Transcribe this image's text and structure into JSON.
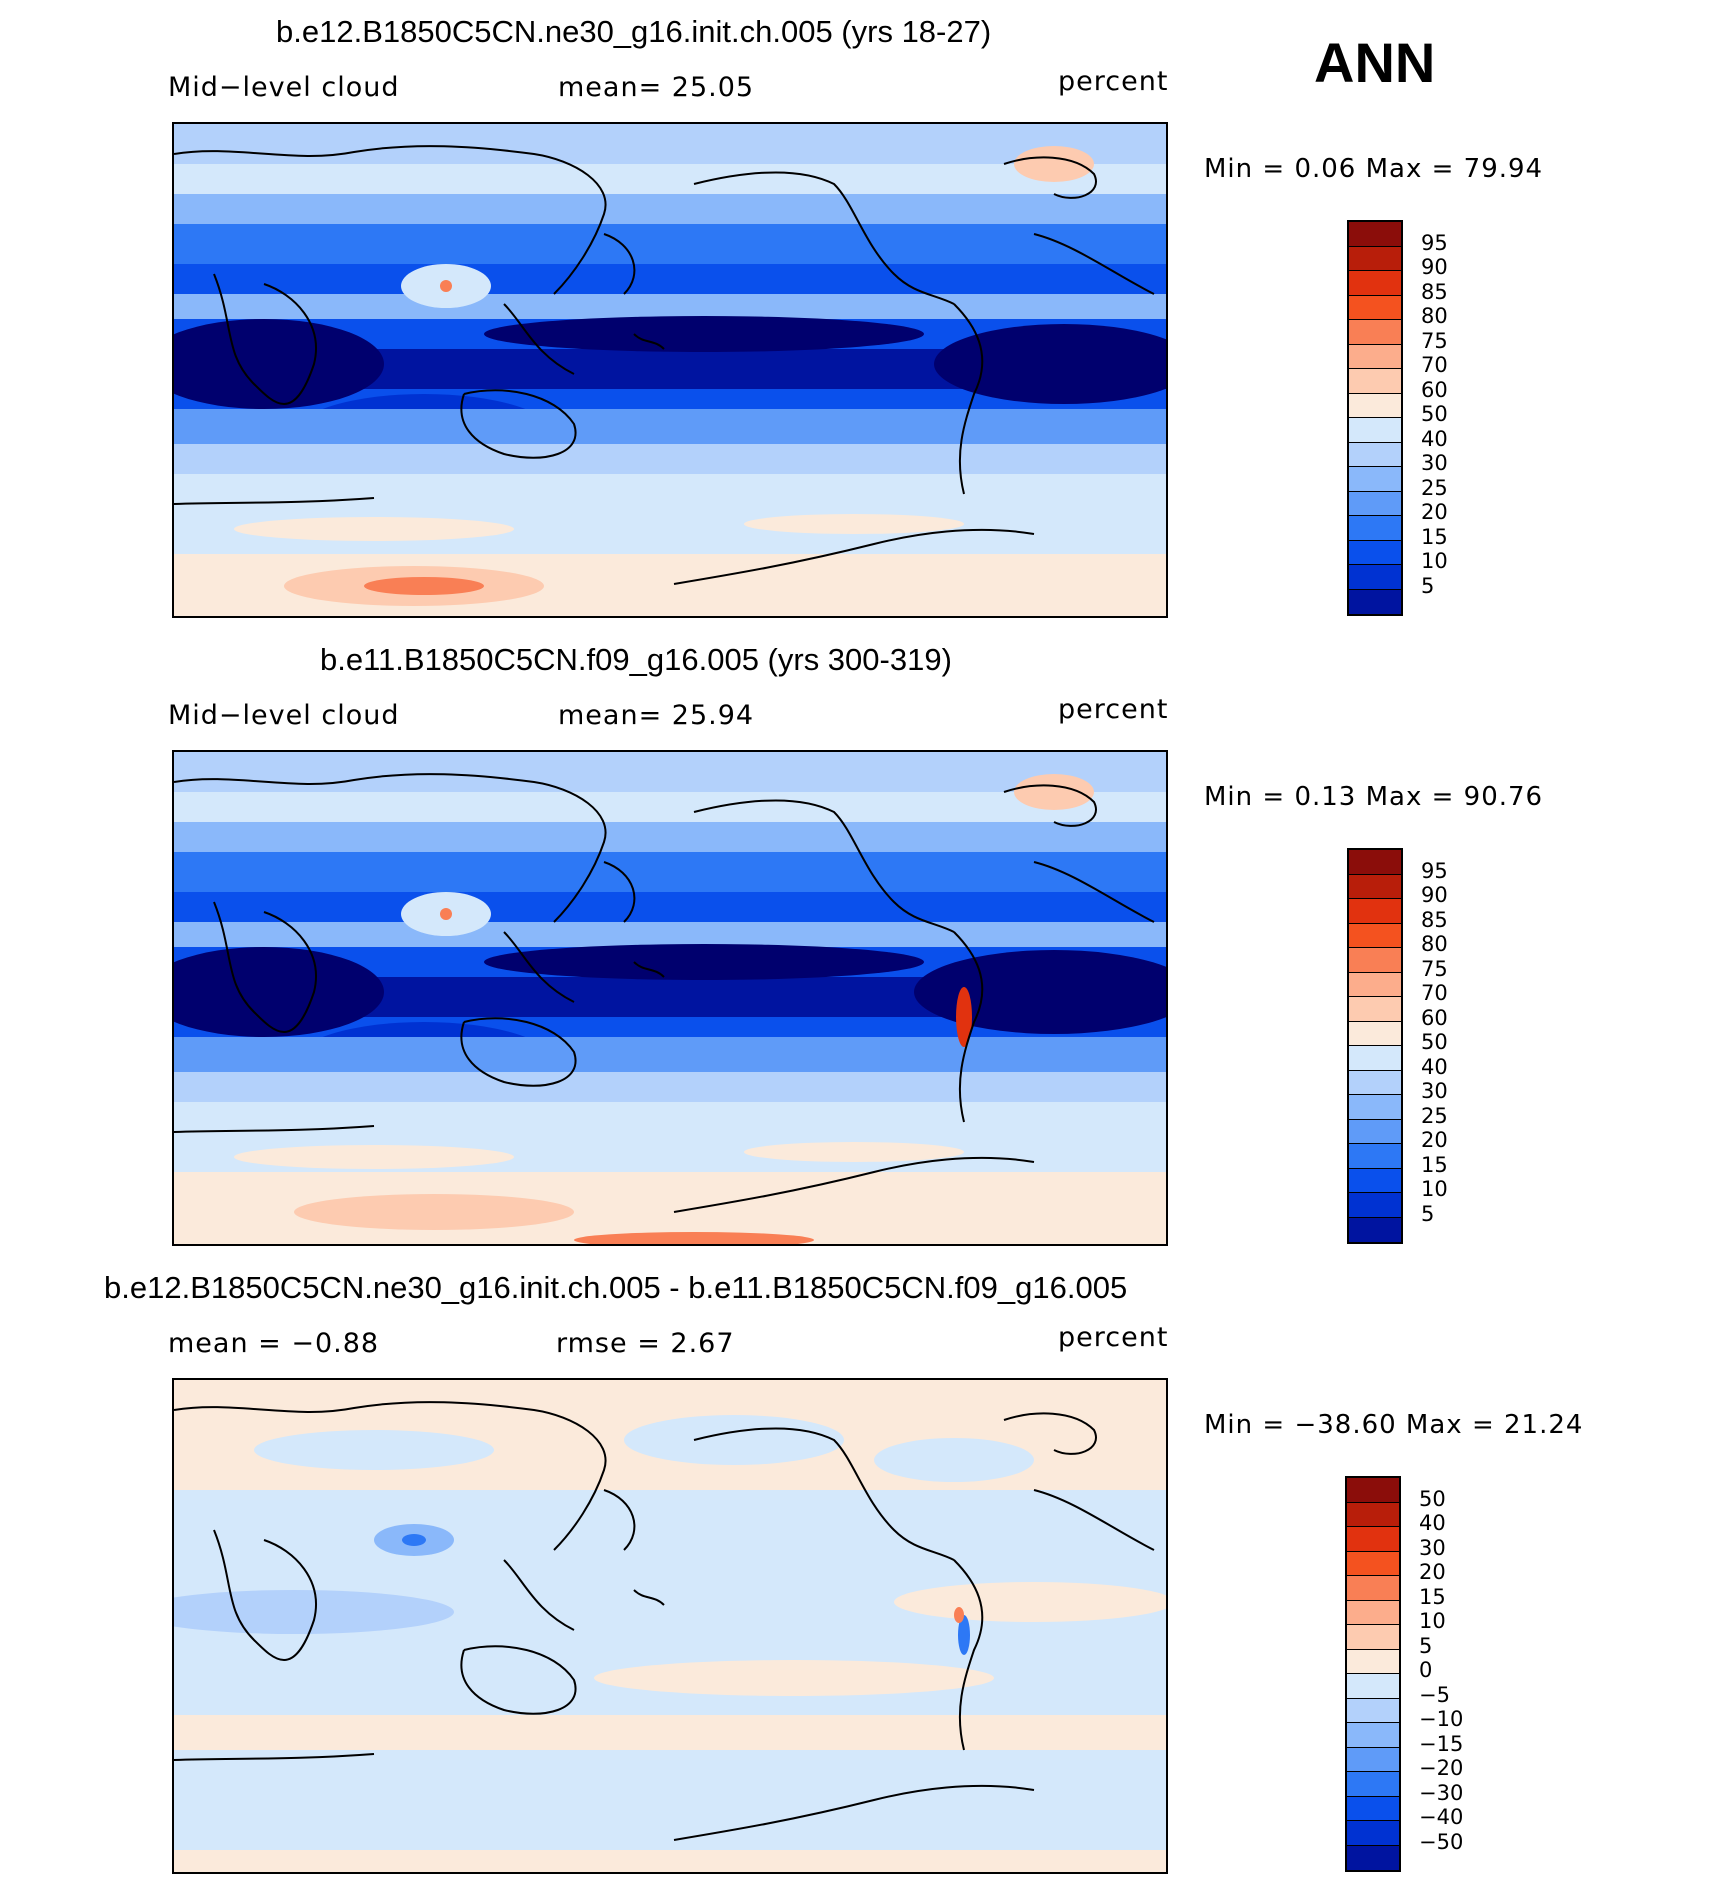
{
  "season": "ANN",
  "colors": {
    "abs_scale": [
      "#00006e",
      "#0014a0",
      "#0032d2",
      "#0a50ec",
      "#2d78f5",
      "#5f9bf8",
      "#8ab8fa",
      "#b3d1fb",
      "#d4e8fb",
      "#fbeadb",
      "#fdcbb0",
      "#fcad8c",
      "#f97f55",
      "#f4521f",
      "#e1320f",
      "#b81e0a",
      "#8b0d0a"
    ],
    "diff_scale": [
      "#00006e",
      "#0014a0",
      "#0032d2",
      "#0a50ec",
      "#2d78f5",
      "#5f9bf8",
      "#8ab8fa",
      "#b3d1fb",
      "#d4e8fb",
      "#fbeadb",
      "#fdcbb0",
      "#fcad8c",
      "#f97f55",
      "#f4521f",
      "#e1320f",
      "#b81e0a",
      "#8b0d0a"
    ],
    "coast": "#000000"
  },
  "abs_scale_labels": [
    "95",
    "90",
    "85",
    "80",
    "75",
    "70",
    "60",
    "50",
    "40",
    "30",
    "25",
    "20",
    "15",
    "10",
    "5"
  ],
  "diff_scale_labels": [
    "50",
    "40",
    "30",
    "20",
    "15",
    "10",
    "5",
    "0",
    "−5",
    "−10",
    "−15",
    "−20",
    "−30",
    "−40",
    "−50"
  ],
  "panels": [
    {
      "title": "b.e12.B1850C5CN.ne30_g16.init.ch.005 (yrs 18-27)",
      "left_label": "Mid−level  cloud",
      "center_label": "mean=   25.05",
      "units": "percent",
      "minmax": "Min  =     0.06  Max  =    79.94"
    },
    {
      "title": "b.e11.B1850C5CN.f09_g16.005 (yrs 300-319)",
      "left_label": "Mid−level  cloud",
      "center_label": "mean=   25.94",
      "units": "percent",
      "minmax": "Min  =     0.13  Max  =    90.76"
    },
    {
      "title": "b.e12.B1850C5CN.ne30_g16.init.ch.005 - b.e11.B1850C5CN.f09_g16.005",
      "left_label": "mean  =    −0.88",
      "center_label": "rmse  =     2.67",
      "units": "percent",
      "minmax": "Min  =  −38.60  Max  =    21.24"
    }
  ]
}
